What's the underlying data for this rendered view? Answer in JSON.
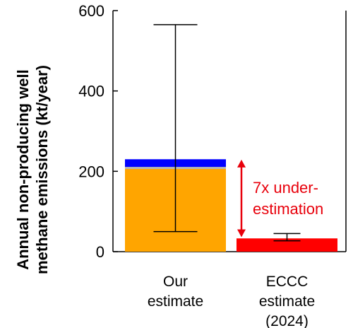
{
  "chart_data": {
    "type": "bar",
    "ylabel_lines": [
      "Annual non-producing well",
      "methane emissions (kt/year)"
    ],
    "xlabel": "",
    "ylim": [
      0,
      600
    ],
    "yticks": [
      0,
      200,
      400,
      600
    ],
    "grid": false,
    "categories": [
      {
        "lines": [
          "Our",
          "estimate"
        ]
      },
      {
        "lines": [
          "ECCC",
          "estimate",
          "(2024)"
        ]
      }
    ],
    "bars": [
      {
        "stack": [
          {
            "value": 206,
            "color": "#ffa500"
          },
          {
            "value": 5,
            "color": "#b3b3b3"
          },
          {
            "value": 19,
            "color": "#0000ff"
          }
        ],
        "error": {
          "low": 50,
          "high": 565
        }
      },
      {
        "stack": [
          {
            "value": 33,
            "color": "#ff0000"
          }
        ],
        "error": {
          "low": 27,
          "high": 45
        }
      }
    ],
    "annotation": {
      "lines": [
        "7x under-",
        "estimation"
      ],
      "color": "#e8000b",
      "arrow_from": 229,
      "arrow_to": 36
    }
  }
}
